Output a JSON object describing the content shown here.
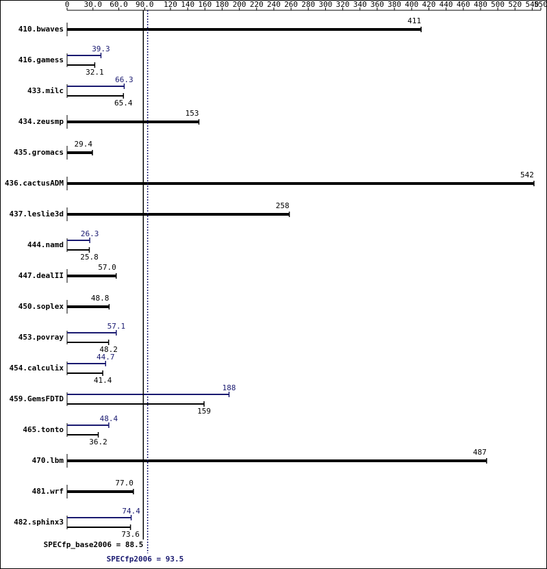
{
  "chart_data": {
    "type": "bar",
    "categories": [
      "410.bwaves",
      "416.gamess",
      "433.milc",
      "434.zeusmp",
      "435.gromacs",
      "436.cactusADM",
      "437.leslie3d",
      "444.namd",
      "447.dealII",
      "450.soplex",
      "453.povray",
      "454.calculix",
      "459.GemsFDTD",
      "465.tonto",
      "470.lbm",
      "481.wrf",
      "482.sphinx3"
    ],
    "series": [
      {
        "color": "#000000",
        "values": [
          411,
          32.1,
          65.4,
          153,
          29.4,
          542,
          258,
          25.8,
          57.0,
          48.8,
          48.2,
          41.4,
          159,
          36.2,
          487,
          77.0,
          73.6
        ],
        "value_labels": [
          "411",
          "32.1",
          "65.4",
          "153",
          "29.4",
          "542",
          "258",
          "25.8",
          "57.0",
          "48.8",
          "48.2",
          "41.4",
          "159",
          "36.2",
          "487",
          "77.0",
          "73.6"
        ]
      },
      {
        "color": "#191970",
        "values": [
          null,
          39.3,
          66.3,
          null,
          null,
          null,
          null,
          26.3,
          null,
          null,
          57.1,
          44.7,
          188,
          48.4,
          null,
          null,
          74.4
        ],
        "value_labels": [
          null,
          "39.3",
          "66.3",
          null,
          null,
          null,
          null,
          "26.3",
          null,
          null,
          "57.1",
          "44.7",
          "188",
          "48.4",
          null,
          null,
          "74.4"
        ]
      }
    ],
    "xlim": [
      0,
      550
    ],
    "xticks": [
      0,
      {
        "value": 30,
        "label": "30.0"
      },
      {
        "value": 60,
        "label": "60.0"
      },
      {
        "value": 90,
        "label": "90.0"
      },
      120,
      140,
      160,
      180,
      200,
      220,
      240,
      260,
      280,
      300,
      320,
      340,
      360,
      380,
      400,
      420,
      440,
      460,
      480,
      500,
      520,
      540,
      550
    ],
    "reference_lines": [
      {
        "label": "SPECfp_base2006 = 88.5",
        "value": 88.5,
        "color": "#000000"
      },
      {
        "label": "SPECfp2006 = 93.5",
        "value": 93.5,
        "color": "#191970"
      }
    ]
  }
}
